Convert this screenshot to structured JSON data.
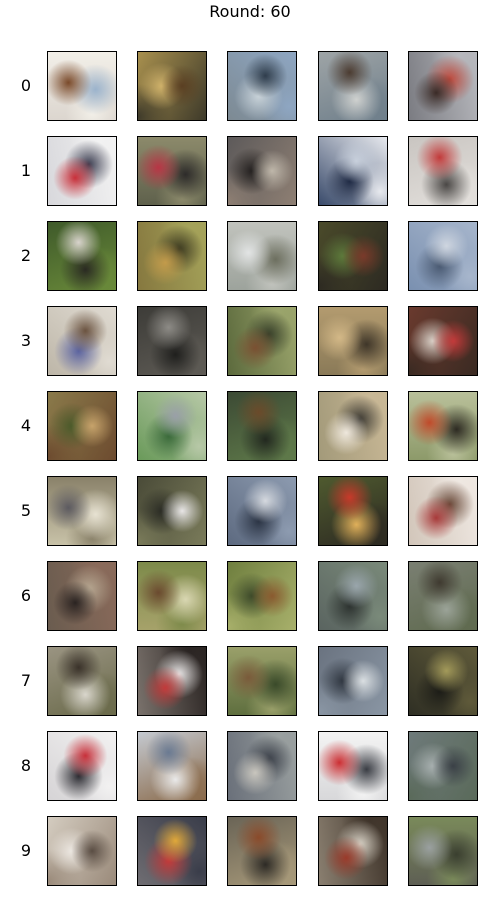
{
  "figure": {
    "title": "Round: 60"
  },
  "grid": {
    "rows": [
      {
        "label": "0",
        "tiles": [
          {
            "bg": "#dcd6cf",
            "c1": "#7a4a2a",
            "c2": "#9bb3cc",
            "c3": "#f2efe8"
          },
          {
            "bg": "#a8904e",
            "c1": "#5a3f22",
            "c2": "#d1b36b",
            "c3": "#3e3a2a"
          },
          {
            "bg": "#7d8a93",
            "c1": "#2f3d4c",
            "c2": "#c8d2d8",
            "c3": "#8ea6c2"
          },
          {
            "bg": "#9ea4a6",
            "c1": "#4c3c31",
            "c2": "#cfd1cf",
            "c3": "#6f7f8b"
          },
          {
            "bg": "#7b7c82",
            "c1": "#3a2b27",
            "c2": "#c04a3d",
            "c3": "#b7b8bd"
          }
        ]
      },
      {
        "label": "1",
        "tiles": [
          {
            "bg": "#d8d8dc",
            "c1": "#c9303a",
            "c2": "#3d3f52",
            "c3": "#f2f2f2"
          },
          {
            "bg": "#5f614c",
            "c1": "#b83545",
            "c2": "#2d2b2a",
            "c3": "#8c8a6b"
          },
          {
            "bg": "#5d5a5a",
            "c1": "#bfb7aa",
            "c2": "#23201f",
            "c3": "#8e7f73"
          },
          {
            "bg": "#3a4b6b",
            "c1": "#c8d0dc",
            "c2": "#1f2a44",
            "c3": "#e7e9ee"
          },
          {
            "bg": "#c9c5c1",
            "c1": "#c23a3a",
            "c2": "#4a4745",
            "c3": "#e3e0dc"
          }
        ]
      },
      {
        "label": "2",
        "tiles": [
          {
            "bg": "#3f5a2a",
            "c1": "#d8d3cc",
            "c2": "#2a2a22",
            "c3": "#6a8a3a"
          },
          {
            "bg": "#86783f",
            "c1": "#c39b4b",
            "c2": "#3b3920",
            "c3": "#a5a35a"
          },
          {
            "bg": "#9da39c",
            "c1": "#e2e4e4",
            "c2": "#6d6f5f",
            "c3": "#c1c3bd"
          },
          {
            "bg": "#4a4a2a",
            "c1": "#7a3a2a",
            "c2": "#5d7a3b",
            "c3": "#2d2a22"
          },
          {
            "bg": "#7a90b0",
            "c1": "#cfd6e0",
            "c2": "#4a5a72",
            "c3": "#a7b6cc"
          }
        ]
      },
      {
        "label": "3",
        "tiles": [
          {
            "bg": "#bdb6a8",
            "c1": "#6b5340",
            "c2": "#5b63a0",
            "c3": "#e0dbd2"
          },
          {
            "bg": "#3d3c38",
            "c1": "#8d8b86",
            "c2": "#1f1f1d",
            "c3": "#5e5b55"
          },
          {
            "bg": "#5c6a3d",
            "c1": "#7a5032",
            "c2": "#38402a",
            "c3": "#9ba56c"
          },
          {
            "bg": "#8a7a58",
            "c1": "#d3b887",
            "c2": "#3f3629",
            "c3": "#b39b6f"
          },
          {
            "bg": "#6a3a2e",
            "c1": "#c23a3a",
            "c2": "#d9d0c7",
            "c3": "#3a2a22"
          }
        ]
      },
      {
        "label": "4",
        "tiles": [
          {
            "bg": "#8a7a4a",
            "c1": "#c7a36b",
            "c2": "#4a5a2a",
            "c3": "#6d4b2f"
          },
          {
            "bg": "#6a9a5a",
            "c1": "#9aa0a8",
            "c2": "#3a6a3a",
            "c3": "#b7c8a7"
          },
          {
            "bg": "#3c4a34",
            "c1": "#6b4a2a",
            "c2": "#22281f",
            "c3": "#5f7a4a"
          },
          {
            "bg": "#a39a7a",
            "c1": "#efe8dd",
            "c2": "#3d3a33",
            "c3": "#c9b896"
          },
          {
            "bg": "#8d9a6a",
            "c1": "#c04a2a",
            "c2": "#2d2a22",
            "c3": "#b9c09a"
          }
        ]
      },
      {
        "label": "5",
        "tiles": [
          {
            "bg": "#c8c2a8",
            "c1": "#5c5a60",
            "c2": "#e7e2d2",
            "c3": "#8a826a"
          },
          {
            "bg": "#4a4b38",
            "c1": "#e8e6e6",
            "c2": "#2a2b24",
            "c3": "#7a7b5a"
          },
          {
            "bg": "#5d6a80",
            "c1": "#d5d9df",
            "c2": "#2b3444",
            "c3": "#8d9bb0"
          },
          {
            "bg": "#4f5a2f",
            "c1": "#c83a2a",
            "c2": "#e0b05a",
            "c3": "#2d2a22"
          },
          {
            "bg": "#d2c6ba",
            "c1": "#a83a3a",
            "c2": "#6a4a3a",
            "c3": "#efe8e2"
          }
        ]
      },
      {
        "label": "6",
        "tiles": [
          {
            "bg": "#6a5c4f",
            "c1": "#2a2321",
            "c2": "#b8a892",
            "c3": "#8a6a5a"
          },
          {
            "bg": "#a6a26a",
            "c1": "#6b4a2f",
            "c2": "#d9d7b2",
            "c3": "#7d8a4a"
          },
          {
            "bg": "#6f7f3f",
            "c1": "#8a5a2f",
            "c2": "#3d4a2a",
            "c3": "#a8b06b"
          },
          {
            "bg": "#5a6460",
            "c1": "#9aa6ac",
            "c2": "#2d3330",
            "c3": "#7a8a7a"
          },
          {
            "bg": "#7a7f72",
            "c1": "#3f3a30",
            "c2": "#9ba398",
            "c3": "#5f6a4f"
          }
        ]
      },
      {
        "label": "7",
        "tiles": [
          {
            "bg": "#9a9482",
            "c1": "#3a322a",
            "c2": "#d9d6cc",
            "c3": "#6a6a4a"
          },
          {
            "bg": "#7a726c",
            "c1": "#c23a3a",
            "c2": "#e8e6e6",
            "c3": "#2a2422"
          },
          {
            "bg": "#5f6f3f",
            "c1": "#7a5a3a",
            "c2": "#3a4a2a",
            "c3": "#9aa06a"
          },
          {
            "bg": "#6a7380",
            "c1": "#dadfe2",
            "c2": "#2f3640",
            "c3": "#8a96a4"
          },
          {
            "bg": "#2f2f24",
            "c1": "#a39a5a",
            "c2": "#1c1c17",
            "c3": "#5f5a3a"
          }
        ]
      },
      {
        "label": "8",
        "tiles": [
          {
            "bg": "#d6d4d6",
            "c1": "#c8303a",
            "c2": "#2d2d33",
            "c3": "#f2f1f1"
          },
          {
            "bg": "#c4c9d0",
            "c1": "#6a7a92",
            "c2": "#eaeaea",
            "c3": "#8a6a4a"
          },
          {
            "bg": "#6a707a",
            "c1": "#c9c6be",
            "c2": "#3a3f48",
            "c3": "#9aa0a0"
          },
          {
            "bg": "#d8d8da",
            "c1": "#cc2f33",
            "c2": "#3a3d44",
            "c3": "#f3f3f3"
          },
          {
            "bg": "#6e7a7a",
            "c1": "#3a4046",
            "c2": "#a8b0b0",
            "c3": "#5a6a5a"
          }
        ]
      },
      {
        "label": "9",
        "tiles": [
          {
            "bg": "#d4ccc0",
            "c1": "#5a4d43",
            "c2": "#ede8e2",
            "c3": "#9a8a7a"
          },
          {
            "bg": "#6f6d72",
            "c1": "#e0a83a",
            "c2": "#c23a3a",
            "c3": "#3a3d4a"
          },
          {
            "bg": "#6a6456",
            "c1": "#8a4a2a",
            "c2": "#2d2a25",
            "c3": "#a89a7a"
          },
          {
            "bg": "#8a7f70",
            "c1": "#9a3a2a",
            "c2": "#d6d0c4",
            "c3": "#3f342a"
          },
          {
            "bg": "#5e5f54",
            "c1": "#9aa0a0",
            "c2": "#3a3f2f",
            "c3": "#7a8a5a"
          }
        ]
      }
    ]
  }
}
